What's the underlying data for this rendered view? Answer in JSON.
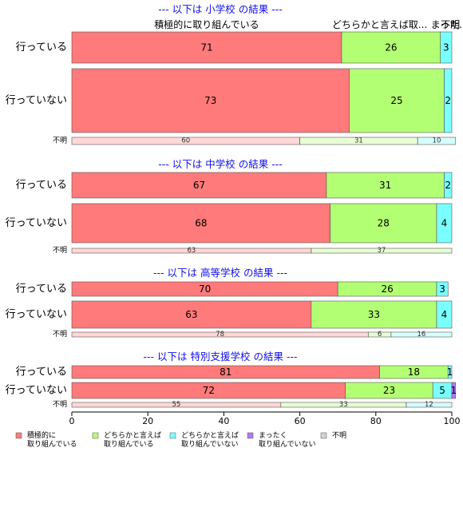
{
  "chart_data": {
    "type": "bar",
    "orientation": "horizontal",
    "stacked": true,
    "xlim": [
      0,
      100
    ],
    "x_ticks": [
      "0",
      "20",
      "40",
      "60",
      "80",
      "100"
    ],
    "grid": false,
    "legend_position": "bottom",
    "top_labels": [
      {
        "text": "積極的に取り組んでいる",
        "at": 35.5
      },
      {
        "text": "どちらかと言えば取...",
        "at": 81
      },
      {
        "text": "まった...",
        "at": 99.4
      },
      {
        "text": "不明",
        "at": 99.6
      }
    ],
    "legend": [
      {
        "key": "s1",
        "label": "積極的に\n取り組んでいる",
        "color": "#ff7a7a"
      },
      {
        "key": "s2",
        "label": "どちらかと言えば\n取り組んでいる",
        "color": "#b3ff73"
      },
      {
        "key": "s3",
        "label": "どちらかと言えば\n取り組んでいない",
        "color": "#7affff"
      },
      {
        "key": "s4",
        "label": "まったく\n取り組んでいない",
        "color": "#b07aff"
      },
      {
        "key": "s5",
        "label": "不明",
        "color": "#d3d3d3"
      }
    ],
    "panels": [
      {
        "title": "--- 以下は 小学校 の結果 ---",
        "rows": [
          {
            "label": "行っている",
            "values": [
              71,
              26,
              3,
              0,
              0
            ],
            "value_labels": [
              "71",
              "26",
              "3",
              "",
              ""
            ]
          },
          {
            "label": "行っていない",
            "values": [
              73,
              25,
              2,
              0,
              0
            ],
            "value_labels": [
              "73",
              "25",
              "2",
              "",
              ""
            ]
          },
          {
            "label": "不明",
            "minor": true,
            "values": [
              60,
              31,
              10,
              0,
              0
            ],
            "value_labels": [
              "60",
              "31",
              "10",
              "",
              ""
            ]
          }
        ]
      },
      {
        "title": "--- 以下は 中学校 の結果 ---",
        "rows": [
          {
            "label": "行っている",
            "values": [
              67,
              31,
              2,
              0,
              0
            ],
            "value_labels": [
              "67",
              "31",
              "2",
              "",
              ""
            ]
          },
          {
            "label": "行っていない",
            "values": [
              68,
              28,
              4,
              0,
              0
            ],
            "value_labels": [
              "68",
              "28",
              "4",
              "",
              ""
            ]
          },
          {
            "label": "不明",
            "minor": true,
            "values": [
              63,
              37,
              0,
              0,
              0
            ],
            "value_labels": [
              "63",
              "37",
              "",
              "",
              ""
            ]
          }
        ]
      },
      {
        "title": "--- 以下は 高等学校 の結果 ---",
        "rows": [
          {
            "label": "行っている",
            "values": [
              70,
              26,
              3,
              0,
              0
            ],
            "value_labels": [
              "70",
              "26",
              "3",
              "",
              ""
            ]
          },
          {
            "label": "行っていない",
            "values": [
              63,
              33,
              4,
              0,
              0
            ],
            "value_labels": [
              "63",
              "33",
              "4",
              "",
              ""
            ]
          },
          {
            "label": "不明",
            "minor": true,
            "values": [
              78,
              6,
              16,
              0,
              0
            ],
            "value_labels": [
              "78",
              "6",
              "16",
              "",
              ""
            ]
          }
        ]
      },
      {
        "title": "--- 以下は 特別支援学校 の結果 ---",
        "rows": [
          {
            "label": "行っている",
            "values": [
              81,
              18,
              1,
              0,
              0
            ],
            "value_labels": [
              "81",
              "18",
              "1",
              "",
              ""
            ]
          },
          {
            "label": "行っていない",
            "values": [
              72,
              23,
              5,
              1,
              0
            ],
            "value_labels": [
              "72",
              "23",
              "5",
              "1",
              ""
            ]
          },
          {
            "label": "不明",
            "minor": true,
            "values": [
              55,
              33,
              12,
              0,
              0
            ],
            "value_labels": [
              "55",
              "33",
              "12",
              "",
              ""
            ]
          }
        ]
      }
    ]
  }
}
